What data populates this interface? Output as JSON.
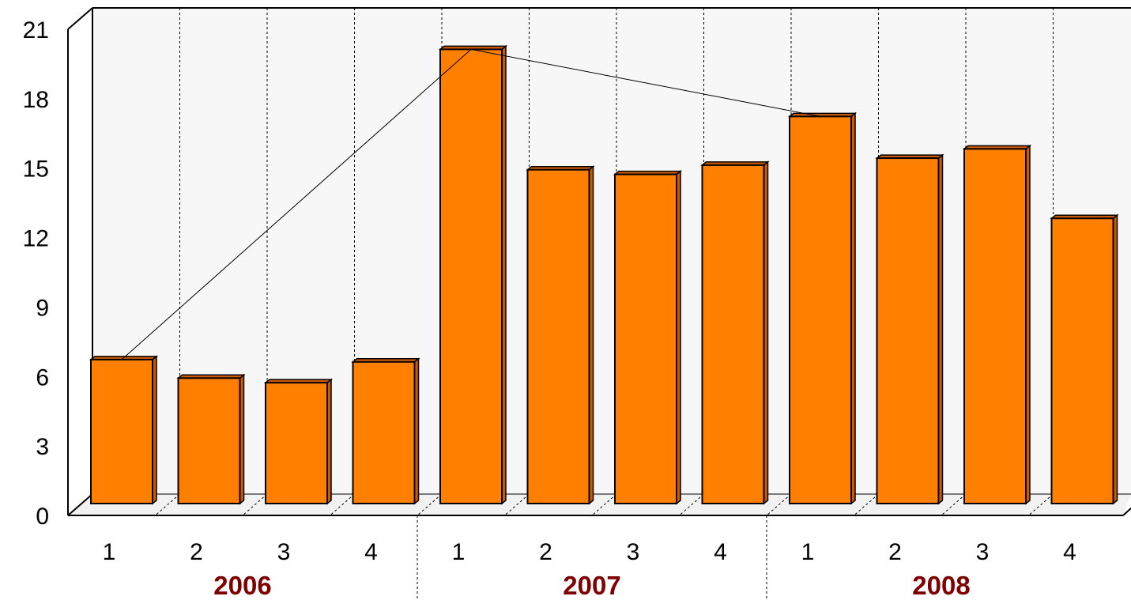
{
  "chart_data": {
    "type": "bar",
    "title": "",
    "xlabel": "",
    "ylabel": "",
    "ylim": [
      0,
      21
    ],
    "yticks": [
      0,
      3,
      6,
      9,
      12,
      15,
      18,
      21
    ],
    "grid": "vertical dashed",
    "legend": "none",
    "groups": [
      {
        "label": "2006",
        "categories": [
          "1",
          "2",
          "3",
          "4"
        ]
      },
      {
        "label": "2007",
        "categories": [
          "1",
          "2",
          "3",
          "4"
        ]
      },
      {
        "label": "2008",
        "categories": [
          "1",
          "2",
          "3",
          "4"
        ]
      }
    ],
    "series": [
      {
        "values": [
          6.8,
          6.0,
          5.8,
          6.7,
          20.2,
          15.0,
          14.8,
          15.2,
          17.3,
          15.5,
          15.9,
          12.9
        ]
      }
    ],
    "trend_line": {
      "points": [
        [
          0,
          6.8
        ],
        [
          4,
          20.2
        ],
        [
          8,
          17.3
        ]
      ]
    },
    "colors": {
      "bar": "#ff8000",
      "bar_top": "#cc5a00",
      "group_label": "#7f0000",
      "plot_background": "#f7f7f7"
    }
  }
}
